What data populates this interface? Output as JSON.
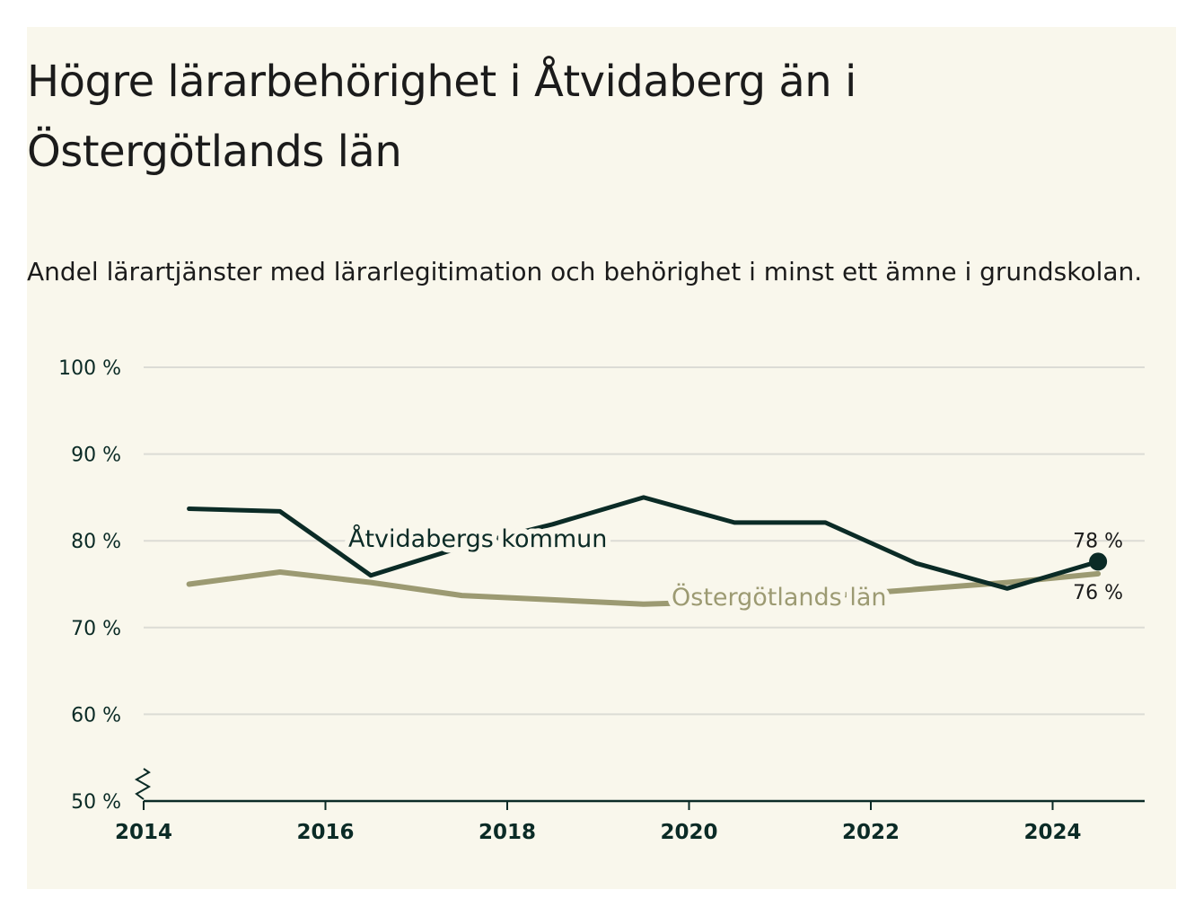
{
  "colors": {
    "background": "#f9f7ec",
    "kommun": "#0b2b26",
    "lan": "#9c9a72",
    "grid": "#dcdcd5",
    "axis": "#0b2b26"
  },
  "chart_data": {
    "type": "line",
    "title": "Högre lärarbehörighet i Åtvidaberg än i Östergötlands län",
    "subtitle": "Andel lärartjänster med lärarlegitimation och behörighet i minst ett ämne i grundskolan.",
    "ylim": [
      50,
      100
    ],
    "xlim": [
      2014,
      2025
    ],
    "yticks": [
      "50 %",
      "60 %",
      "70 %",
      "80 %",
      "90 %",
      "100 %"
    ],
    "ytick_values": [
      50,
      60,
      70,
      80,
      90,
      100
    ],
    "xticks": [
      "2014",
      "2016",
      "2018",
      "2020",
      "2022",
      "2024"
    ],
    "xtick_values": [
      2014,
      2016,
      2018,
      2020,
      2022,
      2024
    ],
    "grid": true,
    "y_axis_break": true,
    "series": [
      {
        "name": "Åtvidabergs kommun",
        "x": [
          2014.5,
          2015.5,
          2016.5,
          2017.5,
          2018.5,
          2019.5,
          2020.5,
          2021.5,
          2022.5,
          2023.5,
          2024.5
        ],
        "values": [
          83.7,
          83.4,
          76.0,
          79.3,
          81.9,
          85.0,
          82.1,
          82.1,
          77.4,
          74.5,
          77.6
        ],
        "end_label": "78 %"
      },
      {
        "name": "Östergötlands län",
        "x": [
          2014.5,
          2015.5,
          2016.5,
          2017.5,
          2018.5,
          2019.5,
          2020.5,
          2021.5,
          2022.5,
          2023.5,
          2024.5
        ],
        "values": [
          75.0,
          76.4,
          75.2,
          73.7,
          73.2,
          72.7,
          73.0,
          73.6,
          74.4,
          75.2,
          76.2
        ],
        "end_label": "76 %"
      }
    ]
  }
}
